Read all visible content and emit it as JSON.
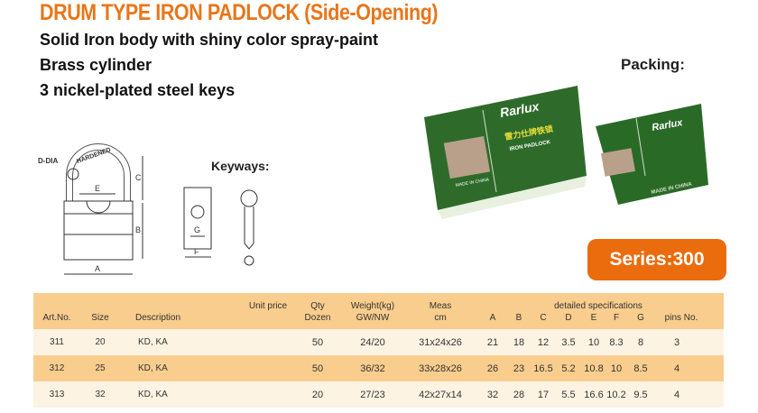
{
  "title": "DRUM TYPE IRON PADLOCK (Side-Opening)",
  "features": [
    "Solid Iron body with shiny color spray-paint",
    "Brass cylinder",
    "3 nickel-plated steel keys"
  ],
  "packing_label": "Packing:",
  "keyways_label": "Keyways:",
  "series_label": "Series:300",
  "diagram": {
    "shackle_text": "HARDENED",
    "d_dia": "D-DIA",
    "dims": [
      "A",
      "B",
      "C",
      "E",
      "F",
      "G"
    ]
  },
  "box_text": {
    "brand": "Rarlux",
    "chinese": "雷力仕牌铁锁",
    "product": "IRON PADLOCK",
    "origin": "MADE IN CHINA"
  },
  "colors": {
    "title": "#e8761a",
    "series_bg": "#ea6c0c",
    "header_bg": "#f9cd8d",
    "row_light": "#fdf3e2",
    "row_dark": "#f9cd8d",
    "box_green": "#2e6b2a"
  },
  "table": {
    "headers": {
      "art": "Art.No.",
      "size": "Size",
      "desc": "Description",
      "price": "Unit price",
      "qty": "Qty",
      "qty2": "Dozen",
      "weight": "Weight(kg)",
      "weight2": "GW/NW",
      "meas": "Meas",
      "meas2": "cm",
      "specs": "detailed specifications",
      "A": "A",
      "B": "B",
      "C": "C",
      "D": "D",
      "E": "E",
      "F": "F",
      "G": "G",
      "pins": "pins No."
    },
    "rows": [
      [
        "311",
        "20",
        "KD, KA",
        "",
        "50",
        "24/20",
        "31x24x26",
        "21",
        "18",
        "12",
        "3.5",
        "10",
        "8.3",
        "8",
        "3"
      ],
      [
        "312",
        "25",
        "KD, KA",
        "",
        "50",
        "36/32",
        "33x28x26",
        "26",
        "23",
        "16.5",
        "5.2",
        "10.8",
        "10",
        "8.5",
        "4"
      ],
      [
        "313",
        "32",
        "KD, KA",
        "",
        "20",
        "27/23",
        "42x27x14",
        "32",
        "28",
        "17",
        "5.5",
        "16.6",
        "10.2",
        "9.5",
        "4"
      ]
    ]
  }
}
